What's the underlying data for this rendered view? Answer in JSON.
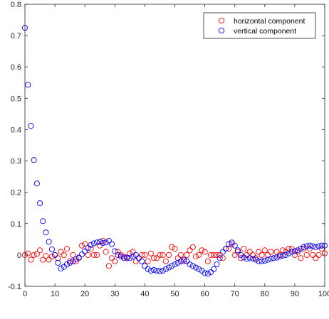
{
  "chart_data": {
    "type": "scatter",
    "title": "",
    "xlabel": "",
    "ylabel": "",
    "xlim": [
      0,
      100
    ],
    "ylim": [
      -0.1,
      0.8
    ],
    "xticks": [
      0,
      10,
      20,
      30,
      40,
      50,
      60,
      70,
      80,
      90,
      100
    ],
    "yticks": [
      -0.1,
      0,
      0.1,
      0.2,
      0.3,
      0.4,
      0.5,
      0.6,
      0.7,
      0.8
    ],
    "xtick_labels": [
      "0",
      "10",
      "20",
      "30",
      "40",
      "50",
      "60",
      "70",
      "80",
      "90",
      "100"
    ],
    "ytick_labels": [
      "-0.1",
      "0",
      "0.1",
      "0.2",
      "0.3",
      "0.4",
      "0.5",
      "0.6",
      "0.7",
      "0.8"
    ],
    "legend_position": "top-right",
    "grid": false,
    "marker": "open-circle",
    "series": [
      {
        "name": "horizontal component",
        "color": "#ff0000",
        "x": [
          0,
          1,
          2,
          3,
          4,
          5,
          6,
          7,
          8,
          9,
          10,
          11,
          12,
          13,
          14,
          15,
          16,
          17,
          18,
          19,
          20,
          21,
          22,
          23,
          24,
          25,
          26,
          27,
          28,
          29,
          30,
          31,
          32,
          33,
          34,
          35,
          36,
          37,
          38,
          39,
          40,
          41,
          42,
          43,
          44,
          45,
          46,
          47,
          48,
          49,
          50,
          51,
          52,
          53,
          54,
          55,
          56,
          57,
          58,
          59,
          60,
          61,
          62,
          63,
          64,
          65,
          66,
          67,
          68,
          69,
          70,
          71,
          72,
          73,
          74,
          75,
          76,
          77,
          78,
          79,
          80,
          81,
          82,
          83,
          84,
          85,
          86,
          87,
          88,
          89,
          90,
          91,
          92,
          93,
          94,
          95,
          96,
          97,
          98,
          99,
          100
        ],
        "y": [
          0.0,
          0.005,
          -0.015,
          0.0,
          0.003,
          0.015,
          -0.015,
          -0.003,
          -0.015,
          -0.005,
          0.0,
          -0.01,
          0.01,
          0.0,
          0.02,
          -0.02,
          0.0,
          -0.02,
          -0.01,
          0.03,
          0.035,
          0.0,
          0.02,
          0.0,
          0.0,
          0.03,
          0.045,
          0.01,
          -0.035,
          -0.01,
          -0.02,
          0.01,
          0.0,
          -0.005,
          -0.01,
          0.005,
          0.01,
          -0.02,
          -0.01,
          0.0,
          0.0,
          -0.02,
          0.005,
          -0.01,
          -0.01,
          0.0,
          0.0,
          -0.02,
          0.0,
          0.025,
          0.02,
          -0.01,
          0.0,
          -0.02,
          0.0,
          0.015,
          0.025,
          -0.005,
          0.0,
          0.015,
          0.01,
          -0.02,
          0.0,
          0.0,
          0.0,
          0.0,
          -0.01,
          0.02,
          0.02,
          0.035,
          0.0,
          0.01,
          -0.01,
          0.02,
          0.0,
          0.01,
          0.0,
          -0.01,
          0.01,
          0.0,
          0.015,
          0.0,
          0.01,
          -0.01,
          0.01,
          0.0,
          0.015,
          0.01,
          0.02,
          0.02,
          0.0,
          0.01,
          -0.01,
          0.02,
          0.0,
          0.02,
          0.0,
          -0.01,
          0.0,
          0.02,
          0.005
        ]
      },
      {
        "name": "vertical component",
        "color": "#0000ff",
        "x": [
          0,
          1,
          2,
          3,
          4,
          5,
          6,
          7,
          8,
          9,
          10,
          11,
          12,
          13,
          14,
          15,
          16,
          17,
          18,
          19,
          20,
          21,
          22,
          23,
          24,
          25,
          26,
          27,
          28,
          29,
          30,
          31,
          32,
          33,
          34,
          35,
          36,
          37,
          38,
          39,
          40,
          41,
          42,
          43,
          44,
          45,
          46,
          47,
          48,
          49,
          50,
          51,
          52,
          53,
          54,
          55,
          56,
          57,
          58,
          59,
          60,
          61,
          62,
          63,
          64,
          65,
          66,
          67,
          68,
          69,
          70,
          71,
          72,
          73,
          74,
          75,
          76,
          77,
          78,
          79,
          80,
          81,
          82,
          83,
          84,
          85,
          86,
          87,
          88,
          89,
          90,
          91,
          92,
          93,
          94,
          95,
          96,
          97,
          98,
          99,
          100
        ],
        "y": [
          0.725,
          0.543,
          0.412,
          0.303,
          0.228,
          0.165,
          0.108,
          0.072,
          0.042,
          0.018,
          0.0,
          -0.025,
          -0.043,
          -0.038,
          -0.03,
          -0.025,
          -0.02,
          -0.013,
          -0.008,
          0.002,
          0.012,
          0.022,
          0.032,
          0.037,
          0.04,
          0.042,
          0.038,
          0.04,
          0.045,
          0.035,
          0.012,
          0.0,
          -0.005,
          -0.01,
          -0.008,
          -0.01,
          -0.005,
          0.0,
          -0.01,
          -0.02,
          -0.035,
          -0.045,
          -0.05,
          -0.048,
          -0.05,
          -0.052,
          -0.05,
          -0.045,
          -0.04,
          -0.035,
          -0.03,
          -0.025,
          -0.02,
          -0.015,
          -0.02,
          -0.03,
          -0.035,
          -0.04,
          -0.045,
          -0.05,
          -0.058,
          -0.06,
          -0.055,
          -0.045,
          -0.03,
          -0.01,
          0.01,
          0.02,
          0.035,
          0.04,
          0.03,
          0.015,
          0.0,
          -0.008,
          -0.012,
          -0.01,
          -0.012,
          -0.015,
          -0.02,
          -0.02,
          -0.018,
          -0.015,
          -0.012,
          -0.01,
          -0.008,
          -0.005,
          -0.002,
          0.0,
          0.005,
          0.01,
          0.012,
          0.015,
          0.02,
          0.025,
          0.028,
          0.03,
          0.028,
          0.025,
          0.028,
          0.03,
          0.03
        ]
      }
    ]
  }
}
